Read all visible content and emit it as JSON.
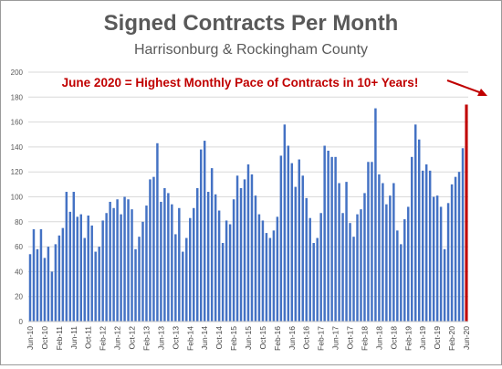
{
  "chart_data": {
    "type": "bar",
    "title": "Signed Contracts Per Month",
    "subtitle": "Harrisonburg & Rockingham County",
    "annotation": "June 2020 = Highest Monthly Pace of Contracts in 10+ Years!",
    "xlabel": "",
    "ylabel": "",
    "ylim": [
      0,
      200
    ],
    "yticks": [
      0,
      20,
      40,
      60,
      80,
      100,
      120,
      140,
      160,
      180,
      200
    ],
    "grid": true,
    "legend": "none",
    "colors": {
      "bar": "#4472C4",
      "highlight": "#C00000",
      "annotation": "#C00000",
      "grid": "#d9d9d9"
    },
    "categories": [
      "Jun-10",
      "Jul-10",
      "Aug-10",
      "Sep-10",
      "Oct-10",
      "Nov-10",
      "Dec-10",
      "Jan-11",
      "Feb-11",
      "Mar-11",
      "Apr-11",
      "May-11",
      "Jun-11",
      "Jul-11",
      "Aug-11",
      "Sep-11",
      "Oct-11",
      "Nov-11",
      "Dec-11",
      "Jan-12",
      "Feb-12",
      "Mar-12",
      "Apr-12",
      "May-12",
      "Jun-12",
      "Jul-12",
      "Aug-12",
      "Sep-12",
      "Oct-12",
      "Nov-12",
      "Dec-12",
      "Jan-13",
      "Feb-13",
      "Mar-13",
      "Apr-13",
      "May-13",
      "Jun-13",
      "Jul-13",
      "Aug-13",
      "Sep-13",
      "Oct-13",
      "Nov-13",
      "Dec-13",
      "Jan-14",
      "Feb-14",
      "Mar-14",
      "Apr-14",
      "May-14",
      "Jun-14",
      "Jul-14",
      "Aug-14",
      "Sep-14",
      "Oct-14",
      "Nov-14",
      "Dec-14",
      "Jan-15",
      "Feb-15",
      "Mar-15",
      "Apr-15",
      "May-15",
      "Jun-15",
      "Jul-15",
      "Aug-15",
      "Sep-15",
      "Oct-15",
      "Nov-15",
      "Dec-15",
      "Jan-16",
      "Feb-16",
      "Mar-16",
      "Apr-16",
      "May-16",
      "Jun-16",
      "Jul-16",
      "Aug-16",
      "Sep-16",
      "Oct-16",
      "Nov-16",
      "Dec-16",
      "Jan-17",
      "Feb-17",
      "Mar-17",
      "Apr-17",
      "May-17",
      "Jun-17",
      "Jul-17",
      "Aug-17",
      "Sep-17",
      "Oct-17",
      "Nov-17",
      "Dec-17",
      "Jan-18",
      "Feb-18",
      "Mar-18",
      "Apr-18",
      "May-18",
      "Jun-18",
      "Jul-18",
      "Aug-18",
      "Sep-18",
      "Oct-18",
      "Nov-18",
      "Dec-18",
      "Jan-19",
      "Feb-19",
      "Mar-19",
      "Apr-19",
      "May-19",
      "Jun-19",
      "Jul-19",
      "Aug-19",
      "Sep-19",
      "Oct-19",
      "Nov-19",
      "Dec-19",
      "Jan-20",
      "Feb-20",
      "Mar-20",
      "Apr-20",
      "May-20",
      "Jun-20"
    ],
    "values": [
      54,
      74,
      58,
      74,
      51,
      60,
      40,
      62,
      69,
      75,
      104,
      88,
      104,
      84,
      86,
      67,
      85,
      77,
      56,
      60,
      81,
      87,
      96,
      91,
      98,
      86,
      100,
      98,
      90,
      58,
      68,
      80,
      93,
      114,
      116,
      143,
      96,
      107,
      103,
      94,
      70,
      91,
      56,
      67,
      83,
      91,
      107,
      138,
      145,
      104,
      123,
      102,
      89,
      63,
      81,
      78,
      98,
      117,
      107,
      114,
      126,
      118,
      101,
      86,
      81,
      71,
      67,
      73,
      84,
      133,
      158,
      141,
      127,
      108,
      130,
      117,
      99,
      83,
      63,
      67,
      87,
      141,
      137,
      132,
      132,
      111,
      87,
      112,
      79,
      68,
      86,
      90,
      103,
      128,
      128,
      171,
      118,
      111,
      94,
      101,
      111,
      73,
      62,
      82,
      92,
      132,
      158,
      146,
      121,
      126,
      121,
      100,
      101,
      92,
      58,
      95,
      110,
      116,
      120,
      139,
      174
    ],
    "highlight_index": 120,
    "x_tick_labels": [
      "Jun-10",
      "Oct-10",
      "Feb-11",
      "Jun-11",
      "Oct-11",
      "Feb-12",
      "Jun-12",
      "Oct-12",
      "Feb-13",
      "Jun-13",
      "Oct-13",
      "Feb-14",
      "Jun-14",
      "Oct-14",
      "Feb-15",
      "Jun-15",
      "Oct-15",
      "Feb-16",
      "Jun-16",
      "Oct-16",
      "Feb-17",
      "Jun-17",
      "Oct-17",
      "Feb-18",
      "Jun-18",
      "Oct-18",
      "Feb-19",
      "Jun-19",
      "Oct-19",
      "Feb-20",
      "Jun-20"
    ]
  }
}
